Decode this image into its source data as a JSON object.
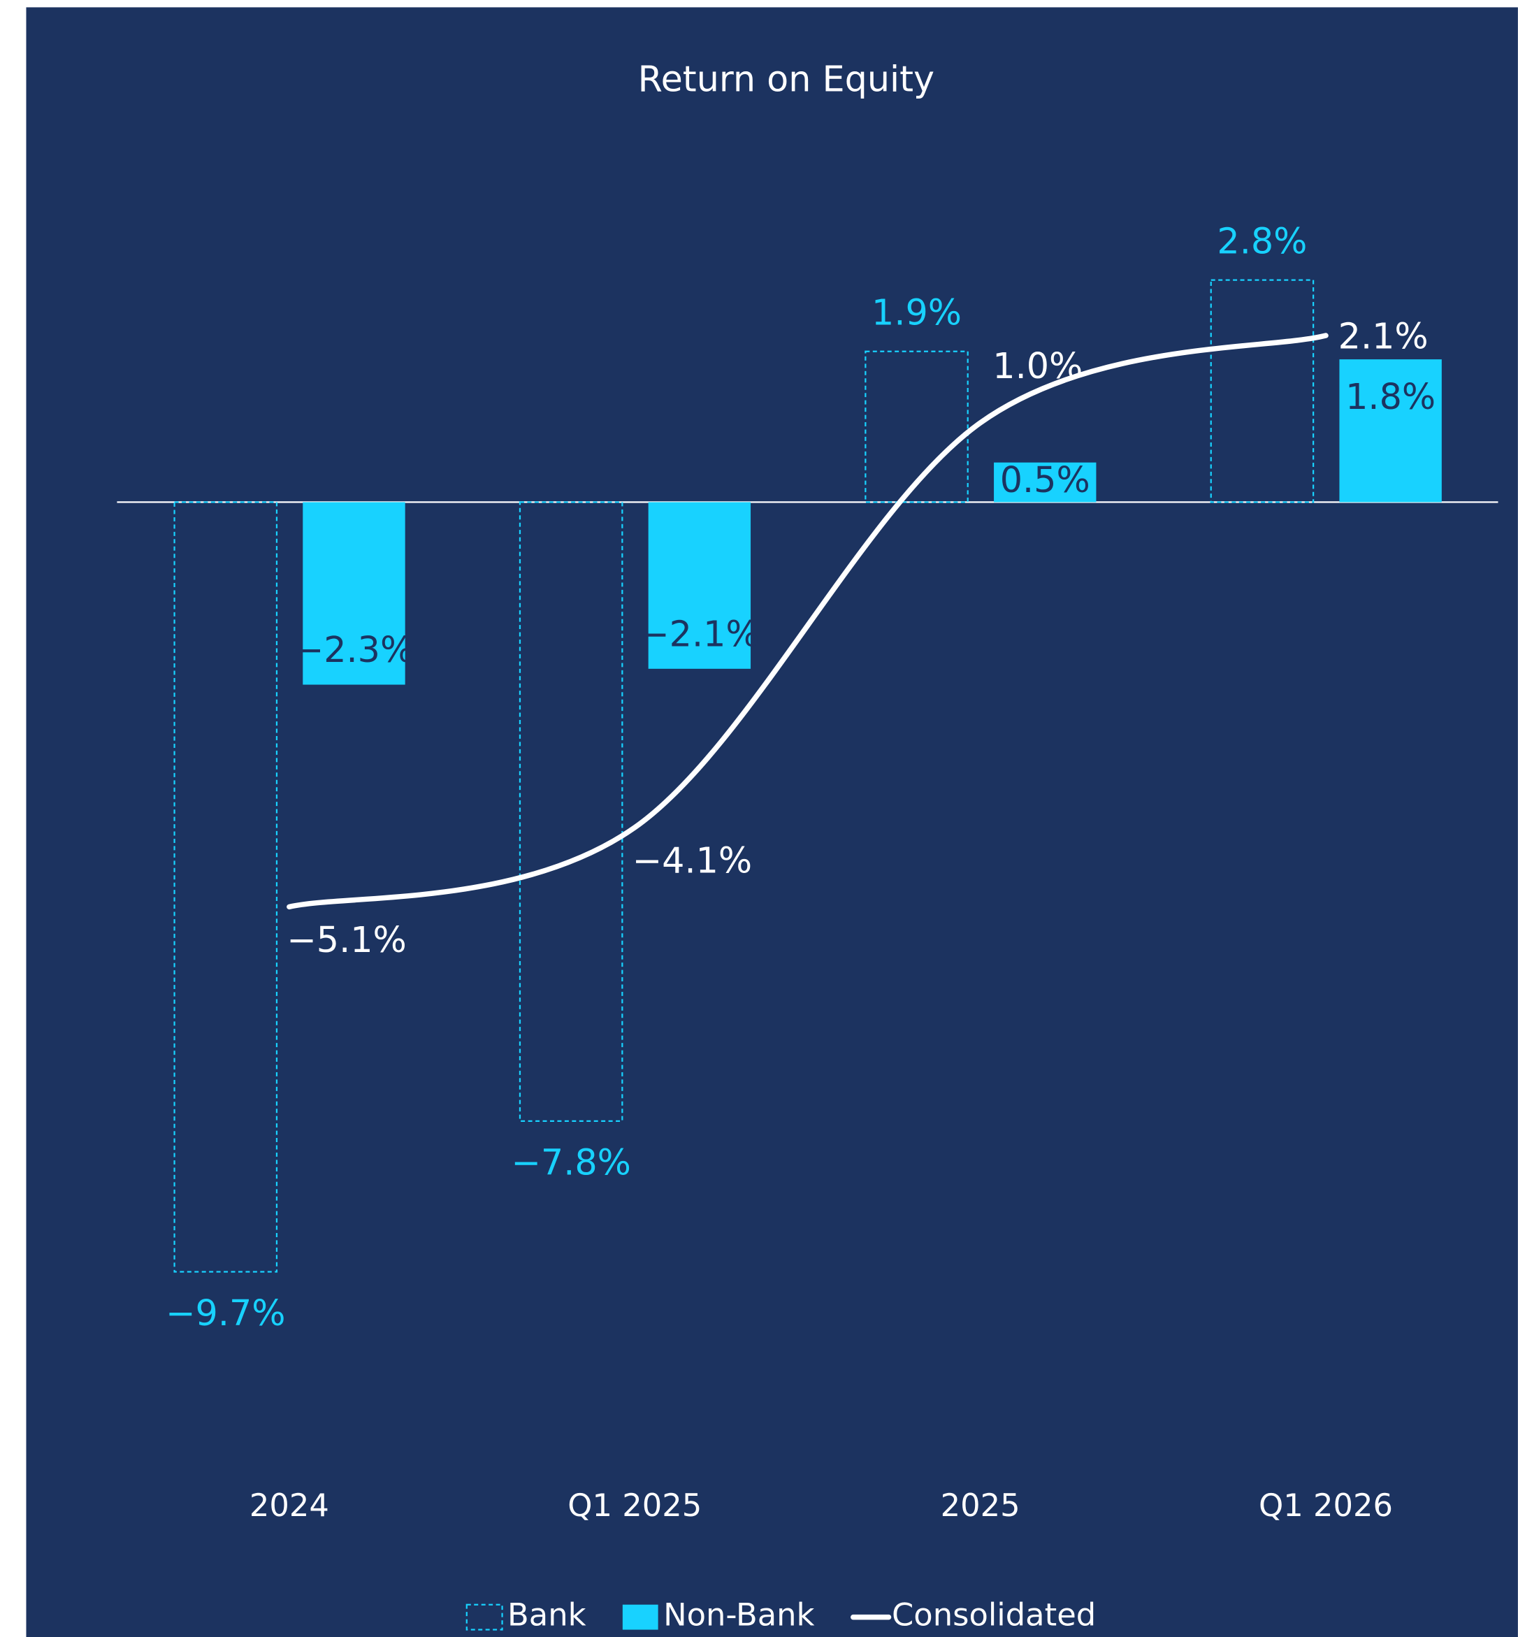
{
  "chart_data": {
    "type": "bar",
    "title": "Return on Equity",
    "categories": [
      "2024",
      "Q1 2025",
      "2025",
      "Q1 2026"
    ],
    "ylim": [
      -12,
      4
    ],
    "series": [
      {
        "name": "Bank",
        "color": "#18d2ff",
        "style": "dashed",
        "values": [
          -9.7,
          -7.8,
          1.9,
          2.8
        ],
        "value_labels": [
          "−9.7%",
          "−7.8%",
          "1.9%",
          "2.8%"
        ]
      },
      {
        "name": "Non-Bank",
        "color": "#18d2ff",
        "values": [
          -2.3,
          -2.1,
          0.5,
          1.8
        ],
        "value_labels": [
          "−2.3%",
          "−2.1%",
          "0.5%",
          "1.8%"
        ]
      },
      {
        "name": "Consolidated",
        "type": "line",
        "color": "#ffffff",
        "values": [
          -5.1,
          -4.1,
          1.0,
          2.1
        ],
        "value_labels": [
          "−5.1%",
          "−4.1%",
          "1.0%",
          "2.1%"
        ]
      }
    ],
    "legend": "bottom"
  }
}
